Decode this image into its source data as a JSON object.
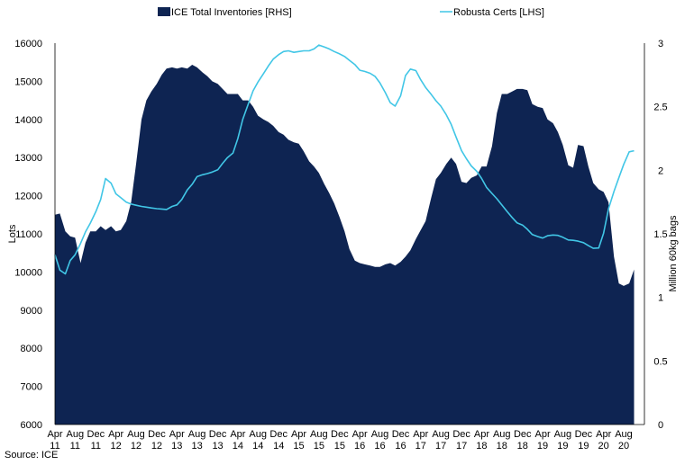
{
  "chart_data": {
    "type": "area",
    "legend": {
      "position": "top",
      "items": [
        {
          "label": "ICE Total Inventories [RHS]",
          "color": "#0e2452",
          "kind": "area"
        },
        {
          "label": "Robusta Certs [LHS]",
          "color": "#41c6e6",
          "kind": "line"
        }
      ]
    },
    "ylabel_left": "Lots",
    "ylabel_right": "Million 60kg bags",
    "ylim_left": [
      6000,
      16000
    ],
    "ylim_right": [
      0,
      3
    ],
    "yticks_left": [
      "16000",
      "15000",
      "14000",
      "13000",
      "12000",
      "11000",
      "10000",
      "9000",
      "8000",
      "7000",
      "6000"
    ],
    "yticks_right": [
      "3",
      "2.5",
      "2",
      "1.5",
      "1",
      "0.5",
      "0"
    ],
    "xlim": [
      2011.25,
      2020.92
    ],
    "xticks": [
      {
        "x": 2011.25,
        "month": "Apr",
        "year": "11"
      },
      {
        "x": 2011.58,
        "month": "Aug",
        "year": "11"
      },
      {
        "x": 2011.92,
        "month": "Dec",
        "year": "11"
      },
      {
        "x": 2012.25,
        "month": "Apr",
        "year": "12"
      },
      {
        "x": 2012.58,
        "month": "Aug",
        "year": "12"
      },
      {
        "x": 2012.92,
        "month": "Dec",
        "year": "12"
      },
      {
        "x": 2013.25,
        "month": "Apr",
        "year": "13"
      },
      {
        "x": 2013.58,
        "month": "Aug",
        "year": "13"
      },
      {
        "x": 2013.92,
        "month": "Dec",
        "year": "13"
      },
      {
        "x": 2014.25,
        "month": "Apr",
        "year": "14"
      },
      {
        "x": 2014.58,
        "month": "Aug",
        "year": "14"
      },
      {
        "x": 2014.92,
        "month": "Dec",
        "year": "14"
      },
      {
        "x": 2015.25,
        "month": "Apr",
        "year": "15"
      },
      {
        "x": 2015.58,
        "month": "Aug",
        "year": "15"
      },
      {
        "x": 2015.92,
        "month": "Dec",
        "year": "15"
      },
      {
        "x": 2016.25,
        "month": "Apr",
        "year": "16"
      },
      {
        "x": 2016.58,
        "month": "Aug",
        "year": "16"
      },
      {
        "x": 2016.92,
        "month": "Dec",
        "year": "16"
      },
      {
        "x": 2017.25,
        "month": "Apr",
        "year": "17"
      },
      {
        "x": 2017.58,
        "month": "Aug",
        "year": "17"
      },
      {
        "x": 2017.92,
        "month": "Dec",
        "year": "17"
      },
      {
        "x": 2018.25,
        "month": "Apr",
        "year": "18"
      },
      {
        "x": 2018.58,
        "month": "Aug",
        "year": "18"
      },
      {
        "x": 2018.92,
        "month": "Dec",
        "year": "18"
      },
      {
        "x": 2019.25,
        "month": "Apr",
        "year": "19"
      },
      {
        "x": 2019.58,
        "month": "Aug",
        "year": "19"
      },
      {
        "x": 2019.92,
        "month": "Dec",
        "year": "19"
      },
      {
        "x": 2020.25,
        "month": "Apr",
        "year": "20"
      },
      {
        "x": 2020.58,
        "month": "Aug",
        "year": "20"
      }
    ],
    "series": [
      {
        "name": "ICE Total Inventories [RHS]",
        "axis": "right",
        "color": "#0e2452",
        "points": [
          [
            2011.25,
            1.65
          ],
          [
            2011.33,
            1.66
          ],
          [
            2011.42,
            1.52
          ],
          [
            2011.5,
            1.48
          ],
          [
            2011.58,
            1.47
          ],
          [
            2011.67,
            1.27
          ],
          [
            2011.75,
            1.43
          ],
          [
            2011.83,
            1.52
          ],
          [
            2011.92,
            1.52
          ],
          [
            2012.0,
            1.56
          ],
          [
            2012.08,
            1.53
          ],
          [
            2012.17,
            1.56
          ],
          [
            2012.25,
            1.52
          ],
          [
            2012.33,
            1.53
          ],
          [
            2012.42,
            1.6
          ],
          [
            2012.5,
            1.75
          ],
          [
            2012.58,
            2.05
          ],
          [
            2012.67,
            2.4
          ],
          [
            2012.75,
            2.55
          ],
          [
            2012.83,
            2.62
          ],
          [
            2012.92,
            2.68
          ],
          [
            2013.0,
            2.75
          ],
          [
            2013.08,
            2.8
          ],
          [
            2013.17,
            2.81
          ],
          [
            2013.25,
            2.8
          ],
          [
            2013.33,
            2.81
          ],
          [
            2013.42,
            2.8
          ],
          [
            2013.5,
            2.83
          ],
          [
            2013.58,
            2.81
          ],
          [
            2013.67,
            2.77
          ],
          [
            2013.75,
            2.74
          ],
          [
            2013.83,
            2.7
          ],
          [
            2013.92,
            2.68
          ],
          [
            2014.0,
            2.64
          ],
          [
            2014.08,
            2.6
          ],
          [
            2014.17,
            2.6
          ],
          [
            2014.25,
            2.6
          ],
          [
            2014.33,
            2.55
          ],
          [
            2014.42,
            2.55
          ],
          [
            2014.5,
            2.5
          ],
          [
            2014.58,
            2.43
          ],
          [
            2014.67,
            2.4
          ],
          [
            2014.75,
            2.38
          ],
          [
            2014.83,
            2.35
          ],
          [
            2014.92,
            2.3
          ],
          [
            2015.0,
            2.28
          ],
          [
            2015.08,
            2.24
          ],
          [
            2015.17,
            2.22
          ],
          [
            2015.25,
            2.21
          ],
          [
            2015.33,
            2.15
          ],
          [
            2015.42,
            2.07
          ],
          [
            2015.5,
            2.03
          ],
          [
            2015.58,
            1.98
          ],
          [
            2015.67,
            1.89
          ],
          [
            2015.75,
            1.82
          ],
          [
            2015.83,
            1.74
          ],
          [
            2015.92,
            1.63
          ],
          [
            2016.0,
            1.52
          ],
          [
            2016.08,
            1.38
          ],
          [
            2016.17,
            1.29
          ],
          [
            2016.25,
            1.27
          ],
          [
            2016.33,
            1.26
          ],
          [
            2016.42,
            1.25
          ],
          [
            2016.5,
            1.24
          ],
          [
            2016.58,
            1.24
          ],
          [
            2016.67,
            1.26
          ],
          [
            2016.75,
            1.27
          ],
          [
            2016.83,
            1.25
          ],
          [
            2016.92,
            1.28
          ],
          [
            2017.0,
            1.32
          ],
          [
            2017.08,
            1.37
          ],
          [
            2017.17,
            1.46
          ],
          [
            2017.25,
            1.53
          ],
          [
            2017.33,
            1.6
          ],
          [
            2017.42,
            1.78
          ],
          [
            2017.5,
            1.93
          ],
          [
            2017.58,
            1.98
          ],
          [
            2017.67,
            2.05
          ],
          [
            2017.75,
            2.1
          ],
          [
            2017.83,
            2.05
          ],
          [
            2017.92,
            1.91
          ],
          [
            2018.0,
            1.9
          ],
          [
            2018.08,
            1.94
          ],
          [
            2018.17,
            1.96
          ],
          [
            2018.25,
            2.03
          ],
          [
            2018.33,
            2.03
          ],
          [
            2018.42,
            2.19
          ],
          [
            2018.5,
            2.45
          ],
          [
            2018.58,
            2.6
          ],
          [
            2018.67,
            2.6
          ],
          [
            2018.75,
            2.62
          ],
          [
            2018.83,
            2.64
          ],
          [
            2018.92,
            2.64
          ],
          [
            2019.0,
            2.63
          ],
          [
            2019.08,
            2.52
          ],
          [
            2019.17,
            2.5
          ],
          [
            2019.25,
            2.49
          ],
          [
            2019.33,
            2.4
          ],
          [
            2019.42,
            2.37
          ],
          [
            2019.5,
            2.3
          ],
          [
            2019.58,
            2.2
          ],
          [
            2019.67,
            2.04
          ],
          [
            2019.75,
            2.02
          ],
          [
            2019.83,
            2.2
          ],
          [
            2019.92,
            2.19
          ],
          [
            2020.0,
            2.03
          ],
          [
            2020.08,
            1.9
          ],
          [
            2020.17,
            1.85
          ],
          [
            2020.25,
            1.83
          ],
          [
            2020.33,
            1.75
          ],
          [
            2020.42,
            1.32
          ],
          [
            2020.5,
            1.11
          ],
          [
            2020.58,
            1.09
          ],
          [
            2020.67,
            1.11
          ],
          [
            2020.75,
            1.22
          ]
        ]
      },
      {
        "name": "Robusta Certs [LHS]",
        "axis": "left",
        "color": "#41c6e6",
        "points": [
          [
            2011.25,
            10450
          ],
          [
            2011.33,
            10050
          ],
          [
            2011.42,
            9950
          ],
          [
            2011.5,
            10300
          ],
          [
            2011.58,
            10450
          ],
          [
            2011.67,
            10750
          ],
          [
            2011.75,
            11050
          ],
          [
            2011.83,
            11280
          ],
          [
            2011.92,
            11580
          ],
          [
            2012.0,
            11900
          ],
          [
            2012.08,
            12450
          ],
          [
            2012.17,
            12330
          ],
          [
            2012.25,
            12050
          ],
          [
            2012.33,
            11950
          ],
          [
            2012.42,
            11830
          ],
          [
            2012.5,
            11780
          ],
          [
            2012.58,
            11750
          ],
          [
            2012.67,
            11720
          ],
          [
            2012.75,
            11700
          ],
          [
            2012.83,
            11680
          ],
          [
            2012.92,
            11660
          ],
          [
            2013.0,
            11650
          ],
          [
            2013.08,
            11640
          ],
          [
            2013.17,
            11720
          ],
          [
            2013.25,
            11760
          ],
          [
            2013.33,
            11900
          ],
          [
            2013.42,
            12150
          ],
          [
            2013.5,
            12300
          ],
          [
            2013.58,
            12500
          ],
          [
            2013.67,
            12550
          ],
          [
            2013.75,
            12580
          ],
          [
            2013.83,
            12620
          ],
          [
            2013.92,
            12680
          ],
          [
            2014.0,
            12850
          ],
          [
            2014.08,
            13000
          ],
          [
            2014.17,
            13120
          ],
          [
            2014.25,
            13500
          ],
          [
            2014.33,
            14000
          ],
          [
            2014.42,
            14400
          ],
          [
            2014.5,
            14750
          ],
          [
            2014.58,
            14980
          ],
          [
            2014.67,
            15200
          ],
          [
            2014.75,
            15400
          ],
          [
            2014.83,
            15580
          ],
          [
            2014.92,
            15700
          ],
          [
            2015.0,
            15780
          ],
          [
            2015.08,
            15800
          ],
          [
            2015.17,
            15760
          ],
          [
            2015.25,
            15780
          ],
          [
            2015.33,
            15800
          ],
          [
            2015.42,
            15800
          ],
          [
            2015.5,
            15850
          ],
          [
            2015.58,
            15950
          ],
          [
            2015.67,
            15900
          ],
          [
            2015.75,
            15850
          ],
          [
            2015.83,
            15780
          ],
          [
            2015.92,
            15720
          ],
          [
            2016.0,
            15650
          ],
          [
            2016.08,
            15550
          ],
          [
            2016.17,
            15440
          ],
          [
            2016.25,
            15290
          ],
          [
            2016.33,
            15260
          ],
          [
            2016.42,
            15210
          ],
          [
            2016.5,
            15130
          ],
          [
            2016.58,
            14960
          ],
          [
            2016.67,
            14700
          ],
          [
            2016.75,
            14440
          ],
          [
            2016.83,
            14350
          ],
          [
            2016.92,
            14620
          ],
          [
            2017.0,
            15150
          ],
          [
            2017.08,
            15320
          ],
          [
            2017.17,
            15280
          ],
          [
            2017.25,
            15040
          ],
          [
            2017.33,
            14840
          ],
          [
            2017.42,
            14660
          ],
          [
            2017.5,
            14490
          ],
          [
            2017.58,
            14350
          ],
          [
            2017.67,
            14120
          ],
          [
            2017.75,
            13870
          ],
          [
            2017.83,
            13540
          ],
          [
            2017.92,
            13180
          ],
          [
            2018.0,
            12970
          ],
          [
            2018.08,
            12780
          ],
          [
            2018.17,
            12640
          ],
          [
            2018.25,
            12450
          ],
          [
            2018.33,
            12220
          ],
          [
            2018.42,
            12060
          ],
          [
            2018.5,
            11920
          ],
          [
            2018.58,
            11760
          ],
          [
            2018.67,
            11580
          ],
          [
            2018.75,
            11430
          ],
          [
            2018.83,
            11290
          ],
          [
            2018.92,
            11230
          ],
          [
            2019.0,
            11120
          ],
          [
            2019.08,
            10980
          ],
          [
            2019.17,
            10930
          ],
          [
            2019.25,
            10890
          ],
          [
            2019.33,
            10950
          ],
          [
            2019.42,
            10970
          ],
          [
            2019.5,
            10960
          ],
          [
            2019.58,
            10910
          ],
          [
            2019.67,
            10840
          ],
          [
            2019.75,
            10830
          ],
          [
            2019.83,
            10810
          ],
          [
            2019.92,
            10770
          ],
          [
            2020.0,
            10690
          ],
          [
            2020.08,
            10620
          ],
          [
            2020.17,
            10630
          ],
          [
            2020.25,
            11020
          ],
          [
            2020.33,
            11650
          ],
          [
            2020.42,
            12110
          ],
          [
            2020.5,
            12470
          ],
          [
            2020.58,
            12820
          ],
          [
            2020.67,
            13150
          ],
          [
            2020.75,
            13180
          ]
        ]
      }
    ],
    "source": "Source: ICE"
  }
}
